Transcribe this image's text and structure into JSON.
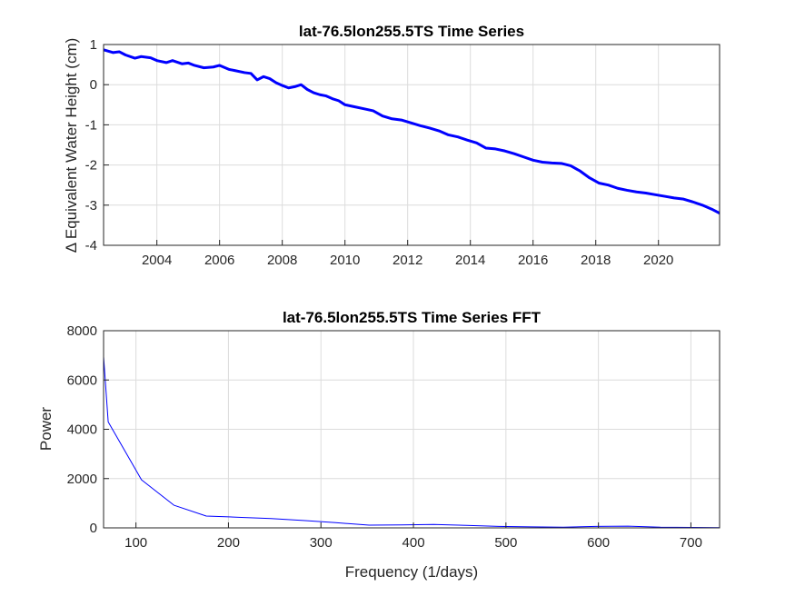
{
  "chart_data": [
    {
      "type": "line",
      "title": "lat-76.5lon255.5TS Time Series",
      "xlabel": "",
      "ylabel": "Δ Equivalent Water Height (cm)",
      "xlim": [
        2002.3,
        2021.95
      ],
      "ylim": [
        -4,
        1
      ],
      "xticks": [
        2004,
        2006,
        2008,
        2010,
        2012,
        2014,
        2016,
        2018,
        2020
      ],
      "yticks": [
        -4,
        -3,
        -2,
        -1,
        0,
        1
      ],
      "grid": true,
      "series": [
        {
          "color": "#0000ff",
          "line_width": 3,
          "x": [
            2002.3,
            2002.6,
            2002.8,
            2003.0,
            2003.3,
            2003.5,
            2003.8,
            2004.0,
            2004.3,
            2004.5,
            2004.8,
            2005.0,
            2005.2,
            2005.5,
            2005.8,
            2006.0,
            2006.3,
            2006.5,
            2006.8,
            2007.0,
            2007.2,
            2007.4,
            2007.6,
            2007.8,
            2008.0,
            2008.2,
            2008.4,
            2008.6,
            2008.8,
            2009.0,
            2009.2,
            2009.4,
            2009.6,
            2009.8,
            2010.0,
            2010.3,
            2010.6,
            2010.9,
            2011.2,
            2011.5,
            2011.8,
            2012.1,
            2012.4,
            2012.7,
            2013.0,
            2013.3,
            2013.6,
            2013.9,
            2014.2,
            2014.5,
            2014.8,
            2015.1,
            2015.4,
            2015.7,
            2016.0,
            2016.3,
            2016.6,
            2016.9,
            2017.2,
            2017.5,
            2017.8,
            2018.1,
            2018.4,
            2018.7,
            2019.0,
            2019.3,
            2019.6,
            2019.9,
            2020.2,
            2020.5,
            2020.8,
            2021.1,
            2021.4,
            2021.7,
            2021.95
          ],
          "y": [
            0.87,
            0.8,
            0.82,
            0.74,
            0.66,
            0.7,
            0.67,
            0.6,
            0.55,
            0.6,
            0.52,
            0.54,
            0.48,
            0.42,
            0.44,
            0.48,
            0.38,
            0.35,
            0.3,
            0.28,
            0.12,
            0.2,
            0.15,
            0.05,
            -0.02,
            -0.08,
            -0.05,
            0.0,
            -0.12,
            -0.2,
            -0.25,
            -0.28,
            -0.35,
            -0.4,
            -0.5,
            -0.55,
            -0.6,
            -0.65,
            -0.78,
            -0.85,
            -0.88,
            -0.95,
            -1.02,
            -1.08,
            -1.15,
            -1.25,
            -1.3,
            -1.38,
            -1.45,
            -1.58,
            -1.6,
            -1.65,
            -1.72,
            -1.8,
            -1.88,
            -1.93,
            -1.95,
            -1.96,
            -2.02,
            -2.15,
            -2.32,
            -2.45,
            -2.5,
            -2.58,
            -2.63,
            -2.67,
            -2.7,
            -2.74,
            -2.78,
            -2.82,
            -2.85,
            -2.92,
            -3.0,
            -3.1,
            -3.2
          ]
        }
      ]
    },
    {
      "type": "line",
      "title": "lat-76.5lon255.5TS Time Series FFT",
      "xlabel": "Frequency (1/days)",
      "ylabel": "Power",
      "xlim": [
        65,
        731
      ],
      "ylim": [
        0,
        8000
      ],
      "xticks": [
        100,
        200,
        300,
        400,
        500,
        600,
        700
      ],
      "yticks": [
        0,
        2000,
        4000,
        6000,
        8000
      ],
      "grid": true,
      "series": [
        {
          "color": "#0000ff",
          "line_width": 1,
          "x": [
            65,
            70,
            106,
            141,
            176,
            211,
            246,
            281,
            316,
            352,
            387,
            422,
            457,
            492,
            527,
            562,
            597,
            632,
            667,
            702,
            731
          ],
          "y": [
            6950,
            4300,
            1950,
            920,
            480,
            430,
            380,
            300,
            210,
            110,
            120,
            140,
            100,
            60,
            40,
            30,
            60,
            70,
            30,
            20,
            10
          ]
        }
      ]
    }
  ]
}
